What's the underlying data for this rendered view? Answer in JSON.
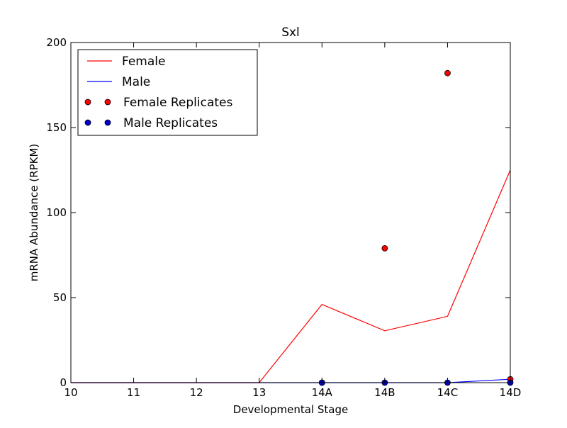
{
  "chart_data": {
    "type": "line",
    "title": "Sxl",
    "xlabel": "Developmental Stage",
    "ylabel": "mRNA Abundance (RPKM)",
    "categories": [
      "10",
      "11",
      "12",
      "13",
      "14A",
      "14B",
      "14C",
      "14D"
    ],
    "ylim": [
      0,
      200
    ],
    "yticks": [
      "0",
      "50",
      "100",
      "150",
      "200"
    ],
    "grid": false,
    "legend_position": "top-left",
    "series": [
      {
        "name": "Female",
        "kind": "line",
        "color": "#ff0000",
        "values": [
          0,
          0,
          0,
          0,
          46,
          30.5,
          39,
          125
        ]
      },
      {
        "name": "Male",
        "kind": "line",
        "color": "#0000ff",
        "values": [
          0,
          0,
          0,
          0,
          0,
          0,
          0,
          2
        ]
      },
      {
        "name": "Female Replicates",
        "kind": "points",
        "color": "#ff0000",
        "points": [
          {
            "x": "14A",
            "y": 0
          },
          {
            "x": "14B",
            "y": 79
          },
          {
            "x": "14C",
            "y": 182
          },
          {
            "x": "14D",
            "y": 2
          }
        ]
      },
      {
        "name": "Male Replicates",
        "kind": "points",
        "color": "#0000cc",
        "points": [
          {
            "x": "14A",
            "y": 0
          },
          {
            "x": "14B",
            "y": 0
          },
          {
            "x": "14C",
            "y": 0
          },
          {
            "x": "14D",
            "y": 0
          }
        ]
      }
    ]
  }
}
